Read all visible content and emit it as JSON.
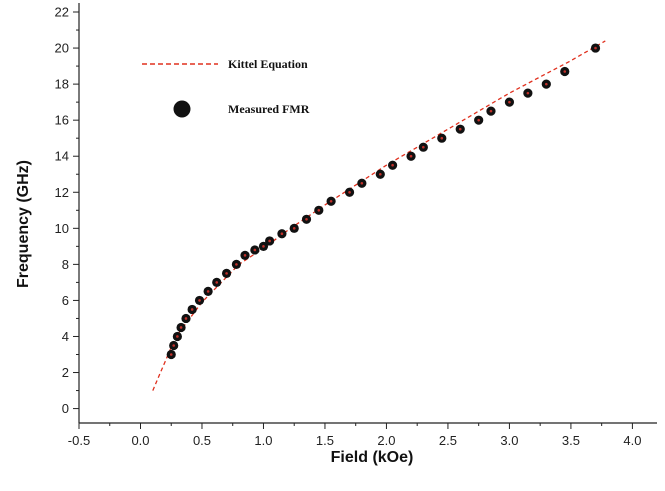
{
  "chart_data": {
    "type": "scatter",
    "xlabel": "Field (kOe)",
    "ylabel": "Frequency (GHz)",
    "xlim": [
      -0.5,
      4.2
    ],
    "ylim": [
      -0.8,
      22.5
    ],
    "xticks": [
      "-0.5",
      "0.0",
      "0.5",
      "1.0",
      "1.5",
      "2.0",
      "2.5",
      "3.0",
      "3.5",
      "4.0"
    ],
    "yticks": [
      "0",
      "2",
      "4",
      "6",
      "8",
      "10",
      "12",
      "14",
      "16",
      "18",
      "20",
      "22"
    ],
    "legend_placement": "top-left",
    "grid": false,
    "series": [
      {
        "name": "Kittel Equation",
        "style": "dashed-line",
        "color": "#e0301e",
        "x": [
          0.1,
          0.15,
          0.2,
          0.25,
          0.3,
          0.4,
          0.5,
          0.6,
          0.8,
          1.0,
          1.2,
          1.5,
          2.0,
          2.5,
          3.0,
          3.5,
          3.78
        ],
        "y": [
          1.0,
          1.8,
          2.6,
          3.4,
          4.1,
          5.0,
          5.9,
          6.6,
          8.0,
          8.9,
          9.9,
          11.3,
          13.5,
          15.5,
          17.5,
          19.3,
          20.4
        ]
      },
      {
        "name": "Measured FMR",
        "style": "markers",
        "color": "#111111",
        "x": [
          0.25,
          0.27,
          0.3,
          0.33,
          0.37,
          0.42,
          0.48,
          0.55,
          0.62,
          0.7,
          0.78,
          0.85,
          0.93,
          1.0,
          1.05,
          1.15,
          1.25,
          1.35,
          1.45,
          1.55,
          1.7,
          1.8,
          1.95,
          2.05,
          2.2,
          2.3,
          2.45,
          2.6,
          2.75,
          2.85,
          3.0,
          3.15,
          3.3,
          3.45,
          3.7
        ],
        "y": [
          3.0,
          3.5,
          4.0,
          4.5,
          5.0,
          5.5,
          6.0,
          6.5,
          7.0,
          7.5,
          8.0,
          8.5,
          8.8,
          9.0,
          9.3,
          9.7,
          10.0,
          10.5,
          11.0,
          11.5,
          12.0,
          12.5,
          13.0,
          13.5,
          14.0,
          14.5,
          15.0,
          15.5,
          16.0,
          16.5,
          17.0,
          17.5,
          18.0,
          18.7,
          20.0
        ]
      }
    ]
  },
  "colors": {
    "kittel_line": "#e0301e",
    "marker": "#111111",
    "marker_highlight": "#c0302a",
    "axis": "#222222"
  }
}
